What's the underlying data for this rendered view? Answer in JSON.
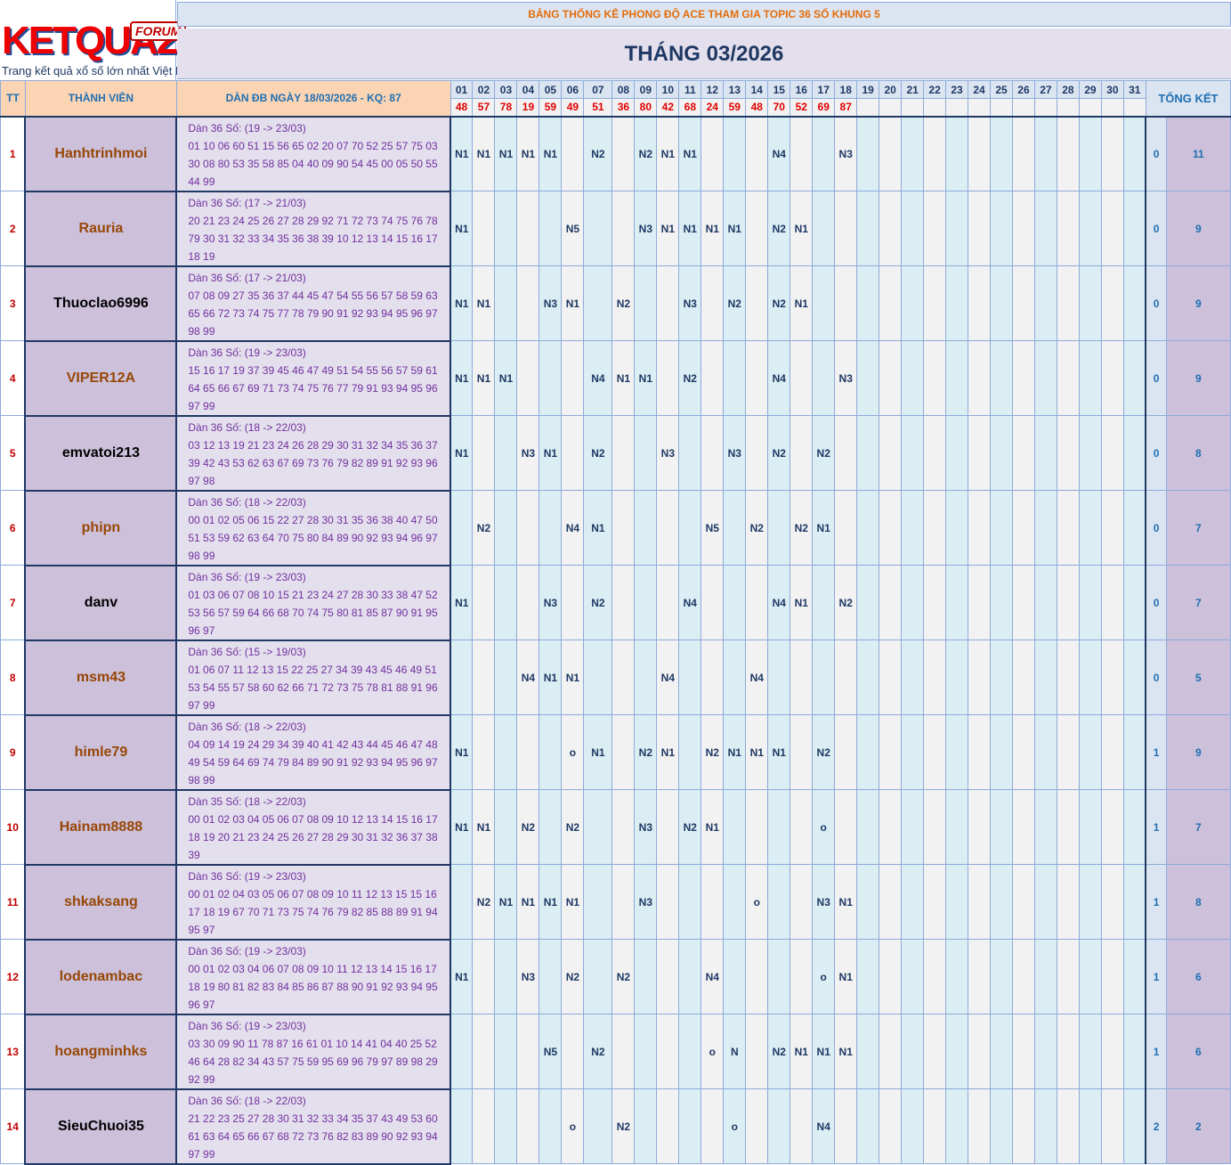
{
  "logo": {
    "text": "KETQUA2",
    "badge": "FORUM",
    "tagline": "Trang kết quả xổ số lớn nhất Việt Nam"
  },
  "title": "BẢNG THỐNG KÊ PHONG ĐỘ ACE THAM GIA TOPIC 36 SỐ KHUNG 5",
  "month": "THÁNG 03/2026",
  "headers": {
    "tt": "TT",
    "member": "THÀNH VIÊN",
    "dan": "DÀN ĐB NGÀY 18/03/2026 - KQ: 87",
    "total": "TỔNG KẾT"
  },
  "days": [
    "01",
    "02",
    "03",
    "04",
    "05",
    "06",
    "07",
    "08",
    "09",
    "10",
    "11",
    "12",
    "13",
    "14",
    "15",
    "16",
    "17",
    "18",
    "19",
    "20",
    "21",
    "22",
    "23",
    "24",
    "25",
    "26",
    "27",
    "28",
    "29",
    "30",
    "31"
  ],
  "results": [
    "48",
    "57",
    "78",
    "19",
    "59",
    "49",
    "51",
    "36",
    "80",
    "42",
    "68",
    "24",
    "59",
    "48",
    "70",
    "52",
    "69",
    "87",
    "",
    "",
    "",
    "",
    "",
    "",
    "",
    "",
    "",
    "",
    "",
    "",
    ""
  ],
  "rows": [
    {
      "tt": "1",
      "name": "Hanhtrinhmoi",
      "color": "brown",
      "dan_head": "Dàn 36 Số: (19 -> 23/03)",
      "dan_nums": "01 10 06 60 51 15 56 65 02 20 07 70 52 25 57 75 03 30 08 80 53 35 58 85 04 40 09 90 54 45 00 05 50 55 44 99",
      "marks": [
        "N1",
        "N1",
        "N1",
        "N1",
        "N1",
        "",
        "N2",
        "",
        "N2",
        "N1",
        "N1",
        "",
        "",
        "",
        "N4",
        "",
        "",
        "N3",
        "",
        "",
        "",
        "",
        "",
        "",
        "",
        "",
        "",
        "",
        "",
        "",
        ""
      ],
      "a": "0",
      "b": "11"
    },
    {
      "tt": "2",
      "name": "Rauria",
      "color": "brown",
      "dan_head": "Dàn 36 Số: (17 -> 21/03)",
      "dan_nums": "20 21 23 24 25 26 27 28 29 92 71 72 73 74 75 76 78 79 30 31 32 33 34 35 36 38 39 10 12 13 14 15 16 17 18 19",
      "marks": [
        "N1",
        "",
        "",
        "",
        "",
        "N5",
        "",
        "",
        "N3",
        "N1",
        "N1",
        "N1",
        "N1",
        "",
        "N2",
        "N1",
        "",
        "",
        "",
        "",
        "",
        "",
        "",
        "",
        "",
        "",
        "",
        "",
        "",
        "",
        ""
      ],
      "a": "0",
      "b": "9"
    },
    {
      "tt": "3",
      "name": "Thuoclao6996",
      "color": "black",
      "dan_head": "Dàn 36 Số: (17 -> 21/03)",
      "dan_nums": "07 08 09 27 35 36 37 44 45 47 54 55 56 57 58 59 63 65 66 72 73 74 75 77 78 79 90 91 92 93 94 95 96 97 98 99",
      "marks": [
        "N1",
        "N1",
        "",
        "",
        "N3",
        "N1",
        "",
        "N2",
        "",
        "",
        "N3",
        "",
        "N2",
        "",
        "N2",
        "N1",
        "",
        "",
        "",
        "",
        "",
        "",
        "",
        "",
        "",
        "",
        "",
        "",
        "",
        "",
        ""
      ],
      "a": "0",
      "b": "9"
    },
    {
      "tt": "4",
      "name": "VIPER12A",
      "color": "brown",
      "dan_head": "Dàn 36 Số: (19 -> 23/03)",
      "dan_nums": "15 16 17 19 37 39 45 46 47 49 51 54 55 56 57 59 61 64 65 66 67 69 71 73 74 75 76 77 79 91 93 94 95 96 97 99",
      "marks": [
        "N1",
        "N1",
        "N1",
        "",
        "",
        "",
        "N4",
        "N1",
        "N1",
        "",
        "N2",
        "",
        "",
        "",
        "N4",
        "",
        "",
        "N3",
        "",
        "",
        "",
        "",
        "",
        "",
        "",
        "",
        "",
        "",
        "",
        "",
        ""
      ],
      "a": "0",
      "b": "9"
    },
    {
      "tt": "5",
      "name": "emvatoi213",
      "color": "black",
      "dan_head": "Dàn 36 Số: (18 -> 22/03)",
      "dan_nums": "03 12 13 19 21 23 24 26 28 29 30 31 32 34 35 36 37 39 42 43 53 62 63 67 69 73 76 79 82 89 91 92 93 96 97 98",
      "marks": [
        "N1",
        "",
        "",
        "N3",
        "N1",
        "",
        "N2",
        "",
        "",
        "N3",
        "",
        "",
        "N3",
        "",
        "N2",
        "",
        "N2",
        "",
        "",
        "",
        "",
        "",
        "",
        "",
        "",
        "",
        "",
        "",
        "",
        "",
        ""
      ],
      "a": "0",
      "b": "8"
    },
    {
      "tt": "6",
      "name": "phipn",
      "color": "brown",
      "dan_head": "Dàn 36 Số: (18 -> 22/03)",
      "dan_nums": "00 01 02 05 06 15 22 27 28 30 31 35 36 38 40 47 50 51 53 59 62 63 64 70 75 80 84 89 90 92 93 94 96 97 98 99",
      "marks": [
        "",
        "N2",
        "",
        "",
        "",
        "N4",
        "N1",
        "",
        "",
        "",
        "",
        "N5",
        "",
        "N2",
        "",
        "N2",
        "N1",
        "",
        "",
        "",
        "",
        "",
        "",
        "",
        "",
        "",
        "",
        "",
        "",
        "",
        ""
      ],
      "a": "0",
      "b": "7"
    },
    {
      "tt": "7",
      "name": "danv",
      "color": "black",
      "dan_head": "Dàn 36 Số: (19 -> 23/03)",
      "dan_nums": "01 03 06 07 08 10 15 21 23 24 27 28 30 33 38 47 52 53 56 57 59 64 66 68 70 74 75 80 81 85 87 90 91 95 96 97",
      "marks": [
        "N1",
        "",
        "",
        "",
        "N3",
        "",
        "N2",
        "",
        "",
        "",
        "N4",
        "",
        "",
        "",
        "N4",
        "N1",
        "",
        "N2",
        "",
        "",
        "",
        "",
        "",
        "",
        "",
        "",
        "",
        "",
        "",
        "",
        ""
      ],
      "a": "0",
      "b": "7"
    },
    {
      "tt": "8",
      "name": "msm43",
      "color": "brown",
      "dan_head": "Dàn 36 Số: (15 -> 19/03)",
      "dan_nums": "01 06 07 11 12 13 15 22 25 27 34 39 43 45 46 49 51 53 54 55 57 58 60 62 66 71 72 73 75 78 81 88 91 96 97 99",
      "marks": [
        "",
        "",
        "",
        "N4",
        "N1",
        "N1",
        "",
        "",
        "",
        "N4",
        "",
        "",
        "",
        "N4",
        "",
        "",
        "",
        "",
        "",
        "",
        "",
        "",
        "",
        "",
        "",
        "",
        "",
        "",
        "",
        "",
        ""
      ],
      "a": "0",
      "b": "5"
    },
    {
      "tt": "9",
      "name": "himle79",
      "color": "brown",
      "dan_head": "Dàn 36 Số: (18 -> 22/03)",
      "dan_nums": "04 09 14 19 24 29 34 39 40 41 42 43 44 45 46 47 48 49 54 59 64 69 74 79 84 89 90 91 92 93 94 95 96 97 98 99",
      "marks": [
        "N1",
        "",
        "",
        "",
        "",
        "o",
        "N1",
        "",
        "N2",
        "N1",
        "",
        "N2",
        "N1",
        "N1",
        "N1",
        "",
        "N2",
        "",
        "",
        "",
        "",
        "",
        "",
        "",
        "",
        "",
        "",
        "",
        "",
        "",
        ""
      ],
      "a": "1",
      "b": "9"
    },
    {
      "tt": "10",
      "name": "Hainam8888",
      "color": "brown",
      "dan_head": "Dàn 35 Số: (18 -> 22/03)",
      "dan_nums": "00 01 02 03 04 05 06 07 08 09 10 12 13 14 15 16 17 18 19 20 21 23 24 25 26 27 28 29 30 31 32 36 37 38 39",
      "marks": [
        "N1",
        "N1",
        "",
        "N2",
        "",
        "N2",
        "",
        "",
        "N3",
        "",
        "N2",
        "N1",
        "",
        "",
        "",
        "",
        "o",
        "",
        "",
        "",
        "",
        "",
        "",
        "",
        "",
        "",
        "",
        "",
        "",
        "",
        ""
      ],
      "a": "1",
      "b": "7"
    },
    {
      "tt": "11",
      "name": "shkaksang",
      "color": "brown",
      "dan_head": "Dàn 36 Số: (19 -> 23/03)",
      "dan_nums": "00 01 02 04 03 05 06 07 08 09 10 11 12 13 15 15 16 17 18 19 67 70 71 73 75 74 76 79 82 85 88 89 91 94 95 97",
      "marks": [
        "",
        "N2",
        "N1",
        "N1",
        "N1",
        "N1",
        "",
        "",
        "N3",
        "",
        "",
        "",
        "",
        "o",
        "",
        "",
        "N3",
        "N1",
        "",
        "",
        "",
        "",
        "",
        "",
        "",
        "",
        "",
        "",
        "",
        "",
        ""
      ],
      "a": "1",
      "b": "8"
    },
    {
      "tt": "12",
      "name": "lodenambac",
      "color": "brown",
      "dan_head": "Dàn 36 Số: (19 -> 23/03)",
      "dan_nums": "00 01 02 03 04 06 07 08 09 10 11 12 13 14 15 16 17 18 19 80 81 82 83 84 85 86 87 88 90 91 92 93 94 95 96 97",
      "marks": [
        "N1",
        "",
        "",
        "N3",
        "",
        "N2",
        "",
        "N2",
        "",
        "",
        "",
        "N4",
        "",
        "",
        "",
        "",
        "o",
        "N1",
        "",
        "",
        "",
        "",
        "",
        "",
        "",
        "",
        "",
        "",
        "",
        "",
        ""
      ],
      "a": "1",
      "b": "6"
    },
    {
      "tt": "13",
      "name": "hoangminhks",
      "color": "brown",
      "dan_head": "Dàn 36 Số: (19 -> 23/03)",
      "dan_nums": "03 30 09 90 11 78 87 16 61 01 10 14 41 04 40 25 52 46 64 28 82 34 43 57 75 59 95 69 96 79 97 89 98 29 92 99",
      "marks": [
        "",
        "",
        "",
        "",
        "N5",
        "",
        "N2",
        "",
        "",
        "",
        "",
        "o",
        "N",
        "",
        "N2",
        "N1",
        "N1",
        "N1",
        "",
        "",
        "",
        "",
        "",
        "",
        "",
        "",
        "",
        "",
        "",
        "",
        ""
      ],
      "a": "1",
      "b": "6"
    },
    {
      "tt": "14",
      "name": "SieuChuoi35",
      "color": "black",
      "dan_head": "Dàn 36 Số: (18 -> 22/03)",
      "dan_nums": "21 22 23 25 27 28 30 31 32 33 34 35 37 43 49 53 60 61 63 64 65 66 67 68 72 73 76 82 83 89 90 92 93 94 97 99",
      "marks": [
        "",
        "",
        "",
        "",
        "",
        "o",
        "",
        "N2",
        "",
        "",
        "",
        "",
        "o",
        "",
        "",
        "",
        "N4",
        "",
        "",
        "",
        "",
        "",
        "",
        "",
        "",
        "",
        "",
        "",
        "",
        "",
        ""
      ],
      "a": "2",
      "b": "2"
    }
  ]
}
